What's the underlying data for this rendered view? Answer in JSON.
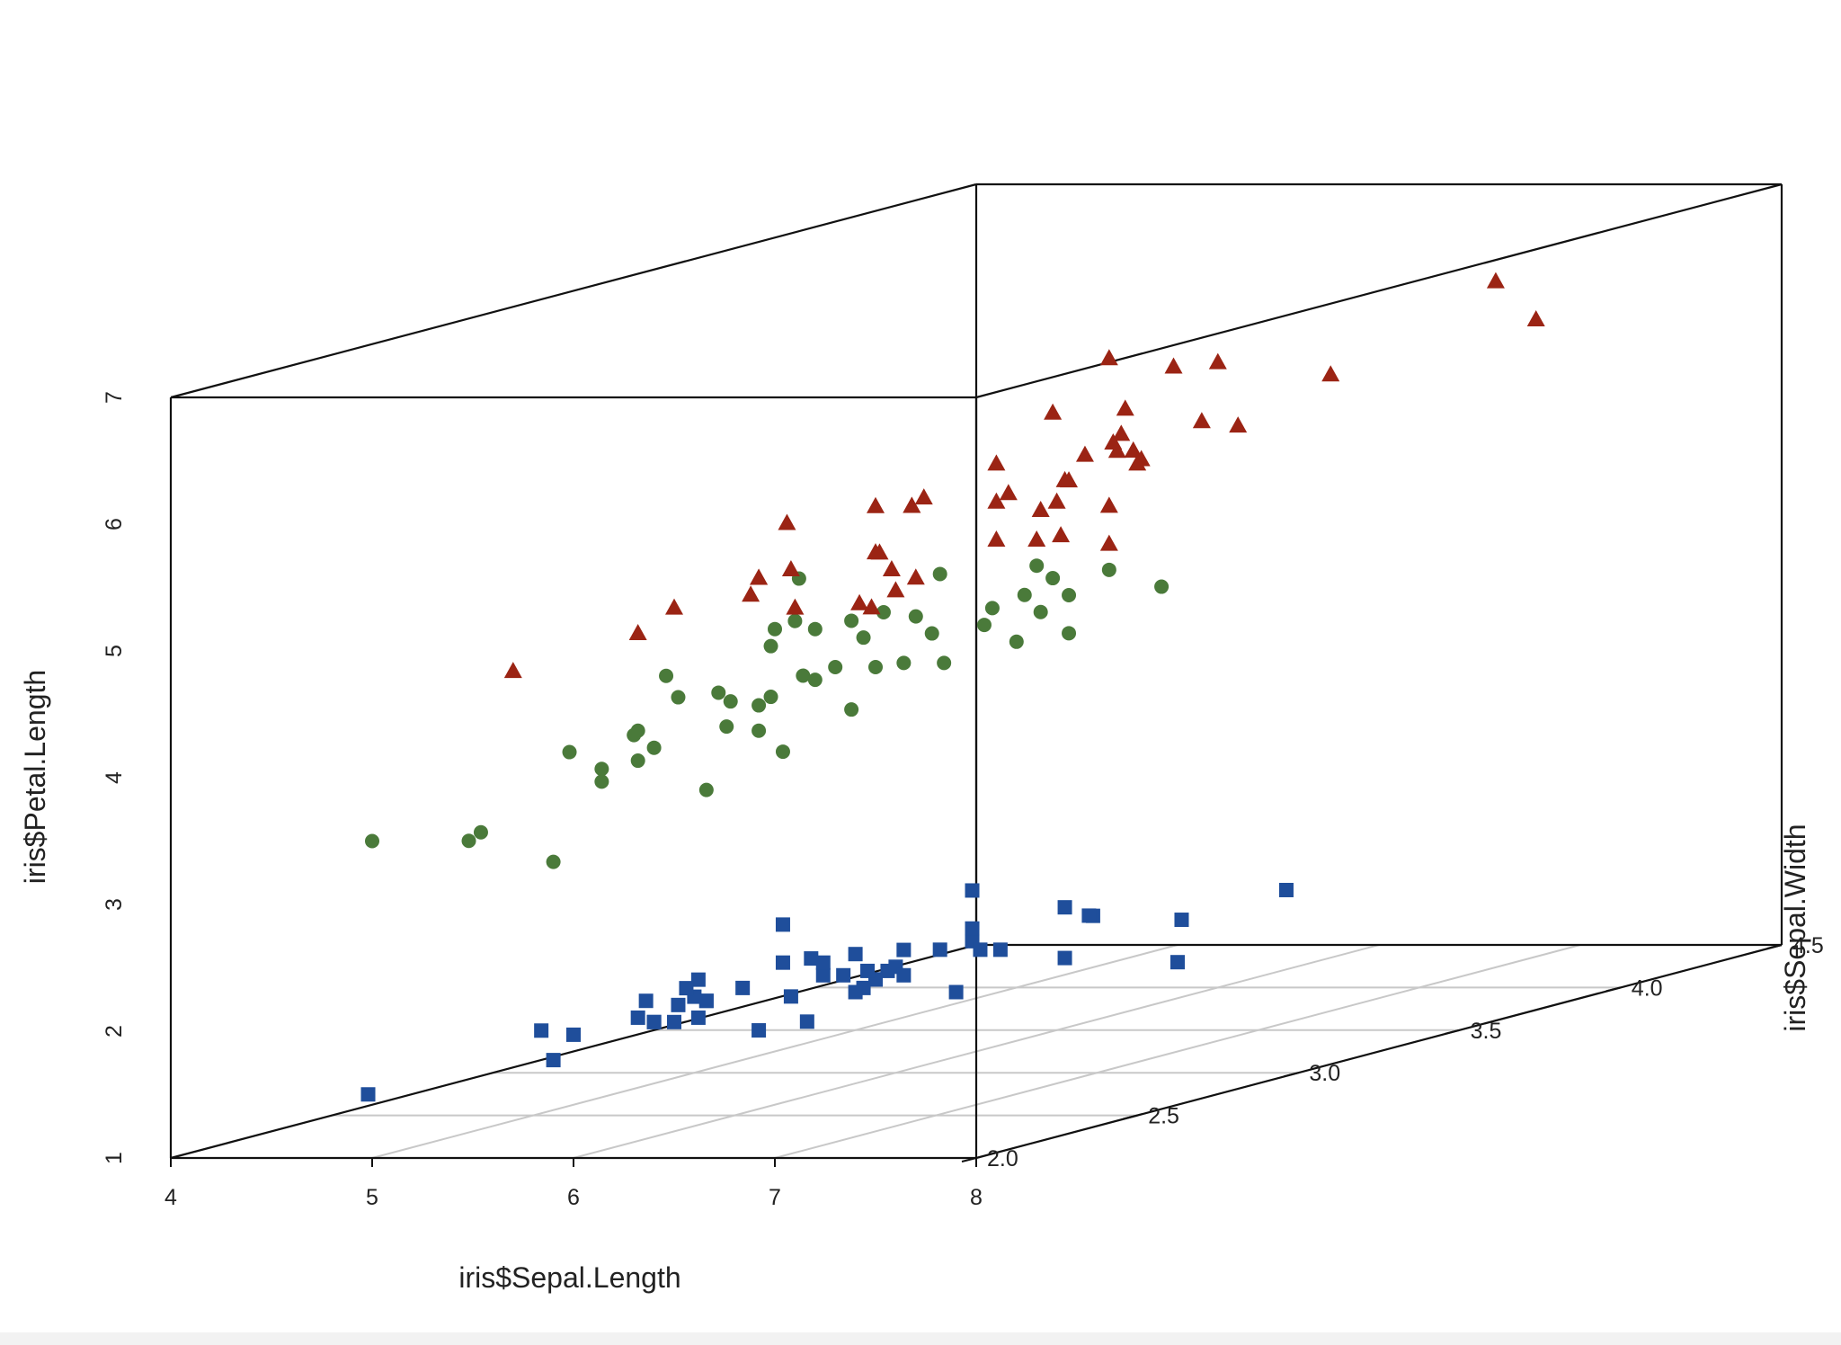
{
  "chart_data": {
    "type": "scatter",
    "projection": "3d",
    "xlabel": "iris$Sepal.Length",
    "ylabel": "iris$Sepal.Width",
    "zlabel": "iris$Petal.Length",
    "xlim": [
      4,
      8
    ],
    "ylim": [
      2.0,
      4.5
    ],
    "zlim": [
      1,
      7
    ],
    "x_ticks": [
      "4",
      "5",
      "6",
      "7",
      "8"
    ],
    "y_ticks": [
      "2.0",
      "2.5",
      "3.0",
      "3.5",
      "4.0",
      "4.5"
    ],
    "z_ticks": [
      "1",
      "2",
      "3",
      "4",
      "5",
      "6",
      "7"
    ],
    "grid": "floor",
    "series": [
      {
        "marker": "square",
        "color": "#1f4e9b",
        "points": [
          [
            5.1,
            3.5,
            1.4
          ],
          [
            4.9,
            3.0,
            1.4
          ],
          [
            4.7,
            3.2,
            1.3
          ],
          [
            4.6,
            3.1,
            1.5
          ],
          [
            5.0,
            3.6,
            1.4
          ],
          [
            5.4,
            3.9,
            1.7
          ],
          [
            4.6,
            3.4,
            1.4
          ],
          [
            5.0,
            3.4,
            1.5
          ],
          [
            4.4,
            2.9,
            1.4
          ],
          [
            4.9,
            3.1,
            1.5
          ],
          [
            5.4,
            3.7,
            1.5
          ],
          [
            4.8,
            3.4,
            1.6
          ],
          [
            4.8,
            3.0,
            1.4
          ],
          [
            4.3,
            3.0,
            1.1
          ],
          [
            5.8,
            4.0,
            1.2
          ],
          [
            5.7,
            4.4,
            1.5
          ],
          [
            5.4,
            3.9,
            1.3
          ],
          [
            5.1,
            3.5,
            1.4
          ],
          [
            5.7,
            3.8,
            1.7
          ],
          [
            5.1,
            3.8,
            1.5
          ],
          [
            5.4,
            3.4,
            1.7
          ],
          [
            5.1,
            3.7,
            1.5
          ],
          [
            4.6,
            3.6,
            1.0
          ],
          [
            5.1,
            3.3,
            1.7
          ],
          [
            4.8,
            3.4,
            1.9
          ],
          [
            5.0,
            3.0,
            1.6
          ],
          [
            5.0,
            3.4,
            1.6
          ],
          [
            5.2,
            3.5,
            1.5
          ],
          [
            5.2,
            3.4,
            1.4
          ],
          [
            4.7,
            3.2,
            1.6
          ],
          [
            4.8,
            3.1,
            1.6
          ],
          [
            5.4,
            3.4,
            1.5
          ],
          [
            5.2,
            4.1,
            1.5
          ],
          [
            5.5,
            4.2,
            1.4
          ],
          [
            4.9,
            3.1,
            1.5
          ],
          [
            5.0,
            3.2,
            1.2
          ],
          [
            5.5,
            3.5,
            1.3
          ],
          [
            4.9,
            3.6,
            1.4
          ],
          [
            4.4,
            3.0,
            1.3
          ],
          [
            5.1,
            3.4,
            1.5
          ],
          [
            5.0,
            3.5,
            1.3
          ],
          [
            4.5,
            2.3,
            1.3
          ],
          [
            4.4,
            3.2,
            1.3
          ],
          [
            5.0,
            3.5,
            1.6
          ],
          [
            5.1,
            3.8,
            1.9
          ],
          [
            4.8,
            3.0,
            1.4
          ],
          [
            5.1,
            3.8,
            1.6
          ],
          [
            4.6,
            3.2,
            1.4
          ],
          [
            5.3,
            3.7,
            1.5
          ],
          [
            5.0,
            3.3,
            1.4
          ]
        ]
      },
      {
        "marker": "circle",
        "color": "#4a7a3a",
        "points": [
          [
            7.0,
            3.2,
            4.7
          ],
          [
            6.4,
            3.2,
            4.5
          ],
          [
            6.9,
            3.1,
            4.9
          ],
          [
            5.5,
            2.3,
            4.0
          ],
          [
            6.5,
            2.8,
            4.6
          ],
          [
            5.7,
            2.8,
            4.5
          ],
          [
            6.3,
            3.3,
            4.7
          ],
          [
            4.9,
            2.4,
            3.3
          ],
          [
            6.6,
            2.9,
            4.6
          ],
          [
            5.2,
            2.7,
            3.9
          ],
          [
            5.0,
            2.0,
            3.5
          ],
          [
            5.9,
            3.0,
            4.2
          ],
          [
            6.0,
            2.2,
            4.0
          ],
          [
            6.1,
            2.9,
            4.7
          ],
          [
            5.6,
            2.9,
            3.6
          ],
          [
            6.7,
            3.1,
            4.4
          ],
          [
            5.6,
            3.0,
            4.5
          ],
          [
            5.8,
            2.7,
            4.1
          ],
          [
            6.2,
            2.2,
            4.5
          ],
          [
            5.6,
            2.5,
            3.9
          ],
          [
            5.9,
            3.2,
            4.8
          ],
          [
            6.1,
            2.8,
            4.0
          ],
          [
            6.3,
            2.5,
            4.9
          ],
          [
            6.1,
            2.8,
            4.7
          ],
          [
            6.4,
            2.9,
            4.3
          ],
          [
            6.6,
            3.0,
            4.4
          ],
          [
            6.8,
            2.8,
            4.8
          ],
          [
            6.7,
            3.0,
            5.0
          ],
          [
            6.0,
            2.9,
            4.5
          ],
          [
            5.7,
            2.6,
            3.5
          ],
          [
            5.5,
            2.4,
            3.8
          ],
          [
            5.5,
            2.4,
            3.7
          ],
          [
            5.8,
            2.7,
            3.9
          ],
          [
            6.0,
            2.7,
            5.1
          ],
          [
            5.4,
            3.0,
            4.5
          ],
          [
            6.0,
            3.4,
            4.5
          ],
          [
            6.7,
            3.1,
            4.7
          ],
          [
            6.3,
            2.3,
            4.4
          ],
          [
            5.6,
            3.0,
            4.1
          ],
          [
            5.5,
            2.5,
            4.0
          ],
          [
            5.5,
            2.6,
            4.4
          ],
          [
            6.1,
            3.0,
            4.6
          ],
          [
            5.8,
            2.6,
            4.0
          ],
          [
            5.0,
            2.3,
            3.3
          ],
          [
            5.6,
            2.7,
            4.2
          ],
          [
            5.7,
            3.0,
            4.2
          ],
          [
            5.7,
            2.9,
            4.2
          ],
          [
            6.2,
            2.9,
            4.3
          ],
          [
            5.1,
            2.5,
            3.0
          ],
          [
            5.7,
            2.8,
            4.1
          ]
        ]
      },
      {
        "marker": "triangle",
        "color": "#9b2414",
        "points": [
          [
            6.3,
            3.3,
            6.0
          ],
          [
            5.8,
            2.7,
            5.1
          ],
          [
            7.1,
            3.0,
            5.9
          ],
          [
            6.3,
            2.9,
            5.6
          ],
          [
            6.5,
            3.0,
            5.8
          ],
          [
            7.6,
            3.0,
            6.6
          ],
          [
            4.9,
            2.5,
            4.5
          ],
          [
            7.3,
            2.9,
            6.3
          ],
          [
            6.7,
            2.5,
            5.8
          ],
          [
            7.2,
            3.6,
            6.1
          ],
          [
            6.5,
            3.2,
            5.1
          ],
          [
            6.4,
            2.7,
            5.3
          ],
          [
            6.8,
            3.0,
            5.5
          ],
          [
            5.7,
            2.5,
            5.0
          ],
          [
            5.8,
            2.8,
            5.1
          ],
          [
            6.4,
            3.2,
            5.3
          ],
          [
            6.5,
            3.0,
            5.5
          ],
          [
            7.7,
            3.8,
            6.7
          ],
          [
            7.7,
            2.6,
            6.9
          ],
          [
            6.0,
            2.2,
            5.0
          ],
          [
            6.9,
            3.2,
            5.7
          ],
          [
            5.6,
            2.8,
            4.9
          ],
          [
            7.7,
            2.8,
            6.7
          ],
          [
            6.3,
            2.7,
            4.9
          ],
          [
            6.7,
            3.3,
            5.7
          ],
          [
            7.2,
            3.2,
            6.0
          ],
          [
            6.2,
            2.8,
            4.8
          ],
          [
            6.1,
            3.0,
            4.9
          ],
          [
            6.4,
            2.8,
            5.6
          ],
          [
            7.2,
            3.0,
            5.8
          ],
          [
            7.4,
            2.8,
            6.1
          ],
          [
            7.9,
            3.8,
            6.4
          ],
          [
            6.4,
            2.8,
            5.6
          ],
          [
            6.3,
            2.8,
            5.1
          ],
          [
            6.1,
            2.6,
            5.6
          ],
          [
            7.7,
            3.0,
            6.1
          ],
          [
            6.3,
            3.4,
            5.6
          ],
          [
            6.4,
            3.1,
            5.5
          ],
          [
            6.0,
            3.0,
            4.8
          ],
          [
            6.9,
            3.1,
            5.4
          ],
          [
            6.7,
            3.1,
            5.6
          ],
          [
            6.9,
            3.1,
            5.1
          ],
          [
            5.8,
            2.7,
            5.1
          ],
          [
            6.8,
            3.2,
            5.9
          ],
          [
            6.7,
            3.3,
            5.7
          ],
          [
            6.7,
            3.0,
            5.2
          ],
          [
            6.3,
            2.5,
            5.0
          ],
          [
            6.5,
            3.0,
            5.2
          ],
          [
            6.2,
            3.4,
            5.4
          ],
          [
            5.9,
            3.0,
            5.1
          ]
        ]
      }
    ]
  }
}
